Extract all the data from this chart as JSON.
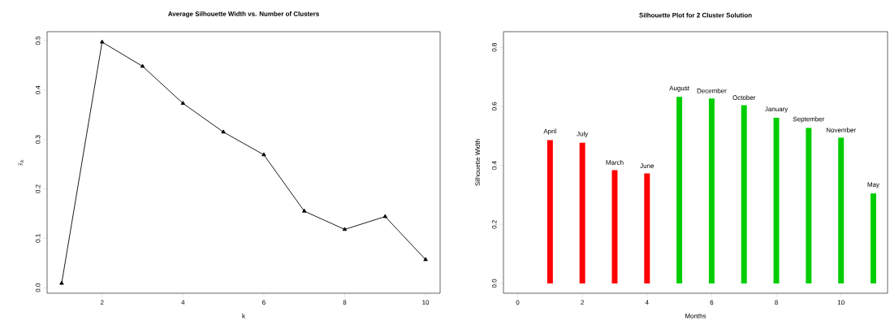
{
  "chart_data": [
    {
      "type": "line",
      "title": "Average Silhouette Width vs. Number of Clusters",
      "xlabel": "k",
      "ylabel": "\\overline{s}_k",
      "x": [
        1,
        2,
        3,
        4,
        5,
        6,
        7,
        8,
        9,
        10
      ],
      "values": [
        0.009,
        0.497,
        0.448,
        0.373,
        0.315,
        0.269,
        0.155,
        0.118,
        0.144,
        0.057
      ],
      "color": "#000000",
      "marker": "triangle",
      "line_style": "solid",
      "xlim": [
        0.64,
        10.36
      ],
      "ylim": [
        -0.011,
        0.518
      ],
      "xticks": [
        2,
        4,
        6,
        8,
        10
      ],
      "yticks": [
        {
          "value": 0,
          "label": "0.0"
        },
        0.1,
        0.2,
        0.3,
        0.4,
        0.5
      ]
    },
    {
      "type": "bar",
      "title": "Silhouette Plot for 2 Cluster Solution",
      "xlabel": "Months",
      "ylabel": "Silhouette Width",
      "x": [
        1,
        2,
        3,
        4,
        5,
        6,
        7,
        8,
        9,
        10,
        11
      ],
      "values": [
        0.486,
        0.477,
        0.384,
        0.373,
        0.632,
        0.627,
        0.604,
        0.561,
        0.527,
        0.494,
        0.305
      ],
      "colors": [
        "#ff0000",
        "#ff0000",
        "#ff0000",
        "#ff0000",
        "#00cd00",
        "#00cd00",
        "#00cd00",
        "#00cd00",
        "#00cd00",
        "#00cd00",
        "#00cd00"
      ],
      "value_labels": [
        "April",
        "July",
        "March",
        "June",
        "August",
        "December",
        "October",
        "January",
        "September",
        "November",
        "May"
      ],
      "xlim": [
        -0.44,
        11.44
      ],
      "ylim": [
        -0.033,
        0.853
      ],
      "xticks": [
        0,
        2,
        4,
        6,
        8,
        10
      ],
      "yticks": [
        {
          "value": 0,
          "label": "0.0"
        },
        0.2,
        0.4,
        0.6,
        0.8
      ]
    }
  ]
}
